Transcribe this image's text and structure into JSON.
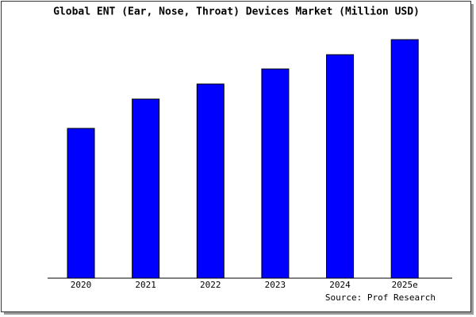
{
  "chart_data": {
    "type": "bar",
    "title": "Global ENT (Ear, Nose, Throat) Devices Market (Million USD)",
    "categories": [
      "2020",
      "2021",
      "2022",
      "2023",
      "2024",
      "2025e"
    ],
    "values": [
      189,
      226,
      245,
      264,
      282,
      301
    ],
    "color": "#0000ff",
    "ylim": [
      0,
      303
    ],
    "source": "Source: Prof Research"
  }
}
